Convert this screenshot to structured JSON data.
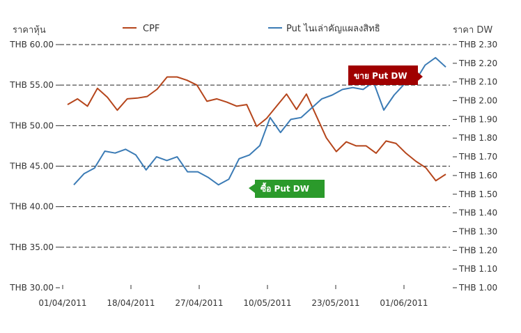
{
  "chart_data": {
    "type": "line",
    "left_axis_label": "ราคาหุ้น",
    "right_axis_label": "ราคา DW",
    "left_ticks": [
      "THB 60.00",
      "THB 55.00",
      "THB 50.00",
      "THB 45.00",
      "THB 40.00",
      "THB 35.00",
      "THB 30.00"
    ],
    "right_ticks": [
      "THB 2.30",
      "THB 2.20",
      "THB 2.10",
      "THB 2.00",
      "THB 1.90",
      "THB 1.80",
      "THB 1.70",
      "THB 1.60",
      "THB 1.50",
      "THB 1.40",
      "THB 1.30",
      "THB 1.20",
      "THB 1.10",
      "THB 1.00"
    ],
    "left_ylim": [
      30,
      60
    ],
    "right_ylim": [
      1.0,
      2.3
    ],
    "x_ticks": [
      "01/04/2011",
      "18/04/2011",
      "27/04/2011",
      "10/05/2011",
      "23/05/2011",
      "01/06/2011"
    ],
    "grid": "horizontal dashed on left-axis ticks",
    "legend_placement": "top",
    "series": [
      {
        "name": "CPF",
        "axis": "left",
        "color": "#b5451b",
        "values": [
          52.6,
          53.3,
          52.4,
          54.6,
          53.5,
          51.9,
          53.3,
          53.4,
          53.6,
          54.5,
          56.0,
          56.0,
          55.6,
          55.0,
          53.0,
          53.3,
          52.9,
          52.4,
          52.6,
          49.9,
          50.9,
          52.4,
          53.9,
          52.0,
          53.9,
          51.2,
          48.5,
          46.8,
          48.0,
          47.5,
          47.5,
          46.6,
          48.1,
          47.8,
          46.6,
          45.6,
          44.8,
          43.2,
          44.0
        ]
      },
      {
        "name": "Put ไนเล่าคัญแผลงสิทธิ",
        "axis": "right",
        "color": "#3b7bb5",
        "values": [
          1.55,
          1.61,
          1.64,
          1.73,
          1.72,
          1.74,
          1.71,
          1.63,
          1.7,
          1.68,
          1.7,
          1.62,
          1.62,
          1.59,
          1.55,
          1.58,
          1.69,
          1.71,
          1.76,
          1.91,
          1.83,
          1.9,
          1.91,
          1.96,
          2.01,
          2.03,
          2.06,
          2.07,
          2.06,
          2.1,
          1.95,
          2.03,
          2.09,
          2.1,
          2.19,
          2.23,
          2.18
        ]
      }
    ],
    "annotations": [
      {
        "text": "ขาย Put DW",
        "color": "#a00000"
      },
      {
        "text": "ซื้อ Put DW",
        "color": "#2b9a2b"
      }
    ]
  }
}
